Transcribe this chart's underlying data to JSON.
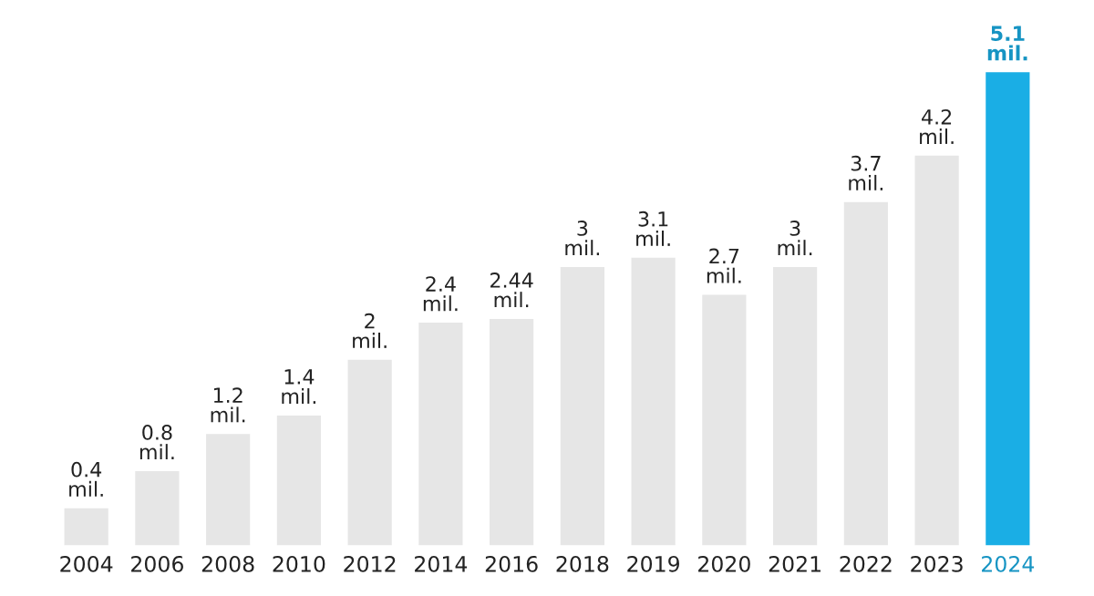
{
  "chart_data": {
    "type": "bar",
    "categories": [
      "2004",
      "2006",
      "2008",
      "2010",
      "2012",
      "2014",
      "2016",
      "2018",
      "2019",
      "2020",
      "2021",
      "2022",
      "2023",
      "2024"
    ],
    "values": [
      0.4,
      0.8,
      1.2,
      1.4,
      2,
      2.4,
      2.44,
      3,
      3.1,
      2.7,
      3,
      3.7,
      4.2,
      5.1
    ],
    "value_labels": [
      "0.4 mil.",
      "0.8 mil.",
      "1.2 mil.",
      "1.4 mil.",
      "2 mil.",
      "2.4 mil.",
      "2.44 mil.",
      "3 mil.",
      "3.1 mil.",
      "2.7 mil.",
      "3 mil.",
      "3.7 mil.",
      "4.2 mil.",
      "5.1 mil."
    ],
    "colors": [
      "#e6e6e6",
      "#e6e6e6",
      "#e6e6e6",
      "#e6e6e6",
      "#e6e6e6",
      "#e6e6e6",
      "#e6e6e6",
      "#e6e6e6",
      "#e6e6e6",
      "#e6e6e6",
      "#e6e6e6",
      "#e6e6e6",
      "#e6e6e6",
      "#1aaee5"
    ],
    "grid": false
  }
}
